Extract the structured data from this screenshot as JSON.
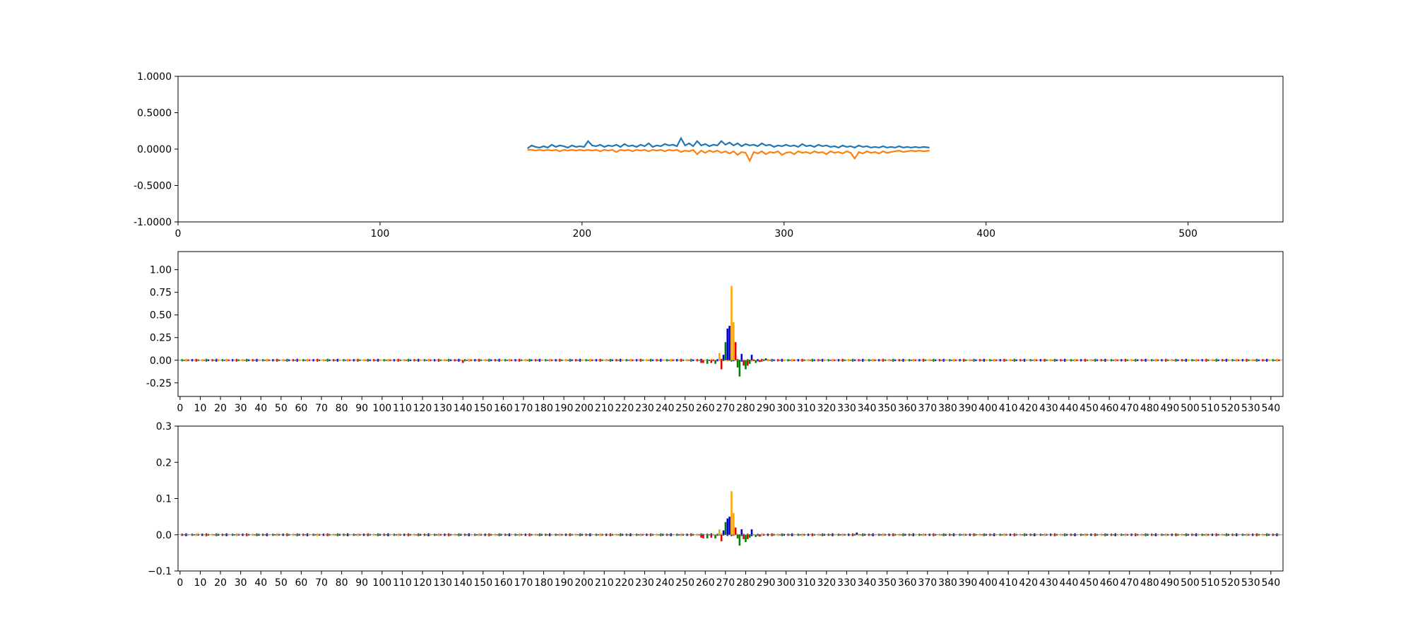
{
  "chart_data": [
    {
      "type": "line",
      "title": "",
      "xlabel": "",
      "ylabel": "",
      "xlim": [
        0,
        547
      ],
      "ylim": [
        -1.0,
        1.0
      ],
      "xticks": [
        "0",
        "100",
        "200",
        "300",
        "400",
        "500"
      ],
      "yticks": [
        "1.0000",
        "0.5000",
        "0.0000",
        "-0.5000",
        "-1.0000"
      ],
      "grid": false,
      "x_range": [
        173,
        372
      ],
      "series": [
        {
          "color": "#1f77b4",
          "points": [
            [
              173,
              0.01
            ],
            [
              175,
              0.05
            ],
            [
              177,
              0.03
            ],
            [
              179,
              0.02
            ],
            [
              181,
              0.04
            ],
            [
              183,
              0.02
            ],
            [
              185,
              0.06
            ],
            [
              187,
              0.03
            ],
            [
              189,
              0.05
            ],
            [
              191,
              0.04
            ],
            [
              193,
              0.02
            ],
            [
              195,
              0.05
            ],
            [
              197,
              0.03
            ],
            [
              199,
              0.04
            ],
            [
              201,
              0.03
            ],
            [
              203,
              0.11
            ],
            [
              205,
              0.05
            ],
            [
              207,
              0.04
            ],
            [
              209,
              0.06
            ],
            [
              211,
              0.03
            ],
            [
              213,
              0.05
            ],
            [
              215,
              0.04
            ],
            [
              217,
              0.06
            ],
            [
              219,
              0.03
            ],
            [
              221,
              0.07
            ],
            [
              223,
              0.04
            ],
            [
              225,
              0.05
            ],
            [
              227,
              0.03
            ],
            [
              229,
              0.06
            ],
            [
              231,
              0.04
            ],
            [
              233,
              0.08
            ],
            [
              235,
              0.03
            ],
            [
              237,
              0.05
            ],
            [
              239,
              0.04
            ],
            [
              241,
              0.07
            ],
            [
              243,
              0.05
            ],
            [
              245,
              0.06
            ],
            [
              247,
              0.04
            ],
            [
              249,
              0.15
            ],
            [
              251,
              0.05
            ],
            [
              253,
              0.08
            ],
            [
              255,
              0.04
            ],
            [
              257,
              0.11
            ],
            [
              259,
              0.05
            ],
            [
              261,
              0.07
            ],
            [
              263,
              0.04
            ],
            [
              265,
              0.06
            ],
            [
              267,
              0.05
            ],
            [
              269,
              0.11
            ],
            [
              271,
              0.06
            ],
            [
              273,
              0.09
            ],
            [
              275,
              0.05
            ],
            [
              277,
              0.08
            ],
            [
              279,
              0.04
            ],
            [
              281,
              0.07
            ],
            [
              283,
              0.05
            ],
            [
              285,
              0.06
            ],
            [
              287,
              0.04
            ],
            [
              289,
              0.08
            ],
            [
              291,
              0.05
            ],
            [
              293,
              0.06
            ],
            [
              295,
              0.03
            ],
            [
              297,
              0.05
            ],
            [
              299,
              0.04
            ],
            [
              301,
              0.06
            ],
            [
              303,
              0.04
            ],
            [
              305,
              0.05
            ],
            [
              307,
              0.03
            ],
            [
              309,
              0.07
            ],
            [
              311,
              0.04
            ],
            [
              313,
              0.05
            ],
            [
              315,
              0.03
            ],
            [
              317,
              0.06
            ],
            [
              319,
              0.04
            ],
            [
              321,
              0.05
            ],
            [
              323,
              0.03
            ],
            [
              325,
              0.04
            ],
            [
              327,
              0.02
            ],
            [
              329,
              0.05
            ],
            [
              331,
              0.03
            ],
            [
              333,
              0.04
            ],
            [
              335,
              0.02
            ],
            [
              337,
              0.05
            ],
            [
              339,
              0.03
            ],
            [
              341,
              0.04
            ],
            [
              343,
              0.02
            ],
            [
              345,
              0.03
            ],
            [
              347,
              0.02
            ],
            [
              349,
              0.04
            ],
            [
              351,
              0.02
            ],
            [
              353,
              0.03
            ],
            [
              355,
              0.02
            ],
            [
              357,
              0.04
            ],
            [
              359,
              0.02
            ],
            [
              361,
              0.03
            ],
            [
              363,
              0.02
            ],
            [
              365,
              0.03
            ],
            [
              367,
              0.02
            ],
            [
              369,
              0.03
            ],
            [
              372,
              0.02
            ]
          ]
        },
        {
          "color": "#ff7f0e",
          "points": [
            [
              173,
              -0.01
            ],
            [
              175,
              -0.01
            ],
            [
              177,
              -0.02
            ],
            [
              179,
              -0.01
            ],
            [
              181,
              -0.02
            ],
            [
              183,
              -0.01
            ],
            [
              185,
              -0.02
            ],
            [
              187,
              -0.01
            ],
            [
              189,
              -0.03
            ],
            [
              191,
              -0.01
            ],
            [
              193,
              -0.02
            ],
            [
              195,
              -0.01
            ],
            [
              197,
              -0.02
            ],
            [
              199,
              -0.01
            ],
            [
              201,
              -0.02
            ],
            [
              203,
              -0.01
            ],
            [
              205,
              -0.02
            ],
            [
              207,
              -0.01
            ],
            [
              209,
              -0.03
            ],
            [
              211,
              -0.01
            ],
            [
              213,
              -0.02
            ],
            [
              215,
              -0.01
            ],
            [
              217,
              -0.04
            ],
            [
              219,
              -0.01
            ],
            [
              221,
              -0.02
            ],
            [
              223,
              -0.01
            ],
            [
              225,
              -0.03
            ],
            [
              227,
              -0.01
            ],
            [
              229,
              -0.02
            ],
            [
              231,
              -0.01
            ],
            [
              233,
              -0.03
            ],
            [
              235,
              -0.01
            ],
            [
              237,
              -0.02
            ],
            [
              239,
              -0.01
            ],
            [
              241,
              -0.03
            ],
            [
              243,
              -0.01
            ],
            [
              245,
              -0.02
            ],
            [
              247,
              -0.01
            ],
            [
              249,
              -0.04
            ],
            [
              251,
              -0.02
            ],
            [
              253,
              -0.03
            ],
            [
              255,
              -0.01
            ],
            [
              257,
              -0.07
            ],
            [
              259,
              -0.02
            ],
            [
              261,
              -0.05
            ],
            [
              263,
              -0.02
            ],
            [
              265,
              -0.04
            ],
            [
              267,
              -0.02
            ],
            [
              269,
              -0.05
            ],
            [
              271,
              -0.03
            ],
            [
              273,
              -0.06
            ],
            [
              275,
              -0.03
            ],
            [
              277,
              -0.08
            ],
            [
              279,
              -0.04
            ],
            [
              281,
              -0.05
            ],
            [
              283,
              -0.16
            ],
            [
              285,
              -0.04
            ],
            [
              287,
              -0.06
            ],
            [
              289,
              -0.03
            ],
            [
              291,
              -0.07
            ],
            [
              293,
              -0.04
            ],
            [
              295,
              -0.05
            ],
            [
              297,
              -0.03
            ],
            [
              299,
              -0.08
            ],
            [
              301,
              -0.05
            ],
            [
              303,
              -0.04
            ],
            [
              305,
              -0.07
            ],
            [
              307,
              -0.03
            ],
            [
              309,
              -0.05
            ],
            [
              311,
              -0.04
            ],
            [
              313,
              -0.06
            ],
            [
              315,
              -0.03
            ],
            [
              317,
              -0.05
            ],
            [
              319,
              -0.04
            ],
            [
              321,
              -0.07
            ],
            [
              323,
              -0.03
            ],
            [
              325,
              -0.05
            ],
            [
              327,
              -0.04
            ],
            [
              329,
              -0.06
            ],
            [
              331,
              -0.03
            ],
            [
              333,
              -0.05
            ],
            [
              335,
              -0.13
            ],
            [
              337,
              -0.04
            ],
            [
              339,
              -0.06
            ],
            [
              341,
              -0.03
            ],
            [
              343,
              -0.05
            ],
            [
              345,
              -0.04
            ],
            [
              347,
              -0.06
            ],
            [
              349,
              -0.03
            ],
            [
              351,
              -0.05
            ],
            [
              353,
              -0.04
            ],
            [
              355,
              -0.03
            ],
            [
              357,
              -0.02
            ],
            [
              359,
              -0.04
            ],
            [
              361,
              -0.03
            ],
            [
              363,
              -0.02
            ],
            [
              365,
              -0.03
            ],
            [
              367,
              -0.02
            ],
            [
              369,
              -0.03
            ],
            [
              372,
              -0.02
            ]
          ]
        }
      ]
    },
    {
      "type": "bar",
      "title": "",
      "xlabel": "",
      "ylabel": "",
      "xlim": [
        -1,
        546
      ],
      "ylim": [
        -0.4,
        1.2
      ],
      "yticks": [
        "1.00",
        "0.75",
        "0.50",
        "0.25",
        "0.00",
        "-0.25"
      ],
      "xticks": [
        "0",
        "10",
        "20",
        "30",
        "40",
        "50",
        "60",
        "70",
        "80",
        "90",
        "100",
        "110",
        "120",
        "130",
        "140",
        "150",
        "160",
        "170",
        "180",
        "190",
        "200",
        "210",
        "220",
        "230",
        "240",
        "250",
        "260",
        "270",
        "280",
        "290",
        "300",
        "310",
        "320",
        "330",
        "340",
        "350",
        "360",
        "370",
        "380",
        "390",
        "400",
        "410",
        "420",
        "430",
        "440",
        "450",
        "460",
        "470",
        "480",
        "490",
        "500",
        "510",
        "520",
        "530",
        "540"
      ],
      "grid": false,
      "letter_colors": {
        "A": "green",
        "C": "blue",
        "G": "orange",
        "T": "red"
      },
      "series": [
        {
          "name": "",
          "x": [
            140,
            258,
            259,
            261,
            263,
            265,
            267,
            268,
            269,
            270,
            271,
            272,
            273,
            274,
            275,
            276,
            277,
            278,
            279,
            280,
            281,
            282,
            283,
            285,
            287,
            290
          ],
          "values": [
            -0.03,
            -0.03,
            -0.03,
            -0.04,
            -0.03,
            -0.04,
            0.08,
            -0.1,
            0.06,
            0.2,
            0.35,
            0.38,
            0.82,
            0.42,
            0.2,
            -0.08,
            -0.18,
            0.07,
            -0.06,
            -0.1,
            -0.06,
            -0.04,
            0.06,
            -0.03,
            -0.02,
            0.02
          ],
          "colors": [
            "red",
            "red",
            "red",
            "green",
            "red",
            "green",
            "orange",
            "red",
            "blue",
            "green",
            "blue",
            "blue",
            "orange",
            "orange",
            "red",
            "green",
            "green",
            "blue",
            "red",
            "green",
            "red",
            "green",
            "blue",
            "green",
            "red",
            "blue"
          ]
        }
      ]
    },
    {
      "type": "bar",
      "title": "",
      "xlabel": "",
      "ylabel": "",
      "xlim": [
        -1,
        546
      ],
      "ylim": [
        -0.1,
        0.3
      ],
      "yticks": [
        "0.3",
        "0.2",
        "0.1",
        "0.0",
        "−0.1"
      ],
      "xticks": [
        "0",
        "10",
        "20",
        "30",
        "40",
        "50",
        "60",
        "70",
        "80",
        "90",
        "100",
        "110",
        "120",
        "130",
        "140",
        "150",
        "160",
        "170",
        "180",
        "190",
        "200",
        "210",
        "220",
        "230",
        "240",
        "250",
        "260",
        "270",
        "280",
        "290",
        "300",
        "310",
        "320",
        "330",
        "340",
        "350",
        "360",
        "370",
        "380",
        "390",
        "400",
        "410",
        "420",
        "430",
        "440",
        "450",
        "460",
        "470",
        "480",
        "490",
        "500",
        "510",
        "520",
        "530",
        "540"
      ],
      "grid": false,
      "letter_colors": {
        "A": "green",
        "C": "blue",
        "G": "orange",
        "T": "red"
      },
      "series": [
        {
          "name": "",
          "x": [
            258,
            259,
            261,
            263,
            265,
            267,
            268,
            269,
            270,
            271,
            272,
            273,
            274,
            275,
            276,
            277,
            278,
            279,
            280,
            281,
            282,
            283,
            285,
            287,
            335
          ],
          "values": [
            -0.008,
            -0.01,
            -0.01,
            -0.008,
            -0.01,
            0.015,
            -0.018,
            0.012,
            0.035,
            0.045,
            0.05,
            0.12,
            0.06,
            0.02,
            -0.01,
            -0.03,
            0.015,
            -0.012,
            -0.02,
            -0.012,
            -0.008,
            0.015,
            -0.006,
            -0.005,
            0.006
          ],
          "colors": [
            "red",
            "red",
            "green",
            "red",
            "green",
            "orange",
            "red",
            "blue",
            "green",
            "blue",
            "blue",
            "orange",
            "orange",
            "red",
            "green",
            "green",
            "blue",
            "red",
            "green",
            "red",
            "green",
            "blue",
            "green",
            "red",
            "blue"
          ]
        }
      ]
    }
  ]
}
